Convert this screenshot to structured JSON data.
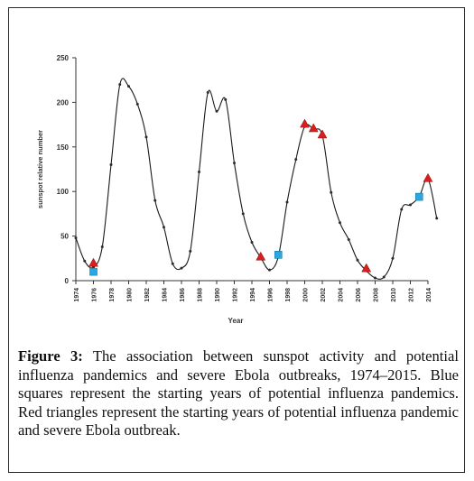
{
  "chart_data": {
    "type": "line",
    "xlabel": "Year",
    "ylabel": "sunspot relative number",
    "xlim": [
      1974,
      2014
    ],
    "ylim": [
      0,
      250
    ],
    "x_ticks": [
      "1974",
      "1976",
      "1978",
      "1980",
      "1982",
      "1984",
      "1986",
      "1988",
      "1990",
      "1992",
      "1994",
      "1996",
      "1998",
      "2000",
      "2002",
      "2004",
      "2006",
      "2008",
      "2010",
      "2012",
      "2014"
    ],
    "y_ticks": [
      "0",
      "50",
      "100",
      "150",
      "200",
      "250"
    ],
    "grid": false,
    "series": [
      {
        "x": [
          1974,
          1975,
          1976,
          1977,
          1978,
          1979,
          1980,
          1981,
          1982,
          1983,
          1984,
          1985,
          1986,
          1987,
          1988,
          1989,
          1990,
          1991,
          1992,
          1993,
          1994,
          1995,
          1996,
          1997,
          1998,
          1999,
          2000,
          2001,
          2002,
          2003,
          2004,
          2005,
          2006,
          2007,
          2008,
          2009,
          2010,
          2011,
          2012,
          2013,
          2014,
          2015
        ],
        "y": [
          48,
          22,
          15,
          38,
          130,
          220,
          218,
          198,
          161,
          90,
          60,
          19,
          14,
          33,
          122,
          211,
          190,
          203,
          132,
          75,
          43,
          26,
          12,
          27,
          88,
          136,
          173,
          170,
          163,
          99,
          65,
          46,
          23,
          11,
          3,
          4,
          25,
          80,
          85,
          94,
          114,
          70
        ]
      }
    ],
    "blue_squares": [
      {
        "x": 1976,
        "y": 10
      },
      {
        "x": 1997,
        "y": 29
      },
      {
        "x": 2013,
        "y": 94
      }
    ],
    "red_triangles": [
      {
        "x": 1976,
        "y": 19
      },
      {
        "x": 1995,
        "y": 26
      },
      {
        "x": 2000,
        "y": 175
      },
      {
        "x": 2001,
        "y": 170
      },
      {
        "x": 2002,
        "y": 163
      },
      {
        "x": 2007,
        "y": 13
      },
      {
        "x": 2014,
        "y": 114
      }
    ],
    "colors": {
      "line": "#1a1a1a",
      "marker": "#2b2b2b",
      "square": "#29a8e0",
      "triangle": "#d81e1e"
    }
  },
  "caption": {
    "label": "Figure 3:",
    "text": " The association between sunspot activity and potential influenza pandemics and severe Ebola outbreaks, 1974–2015. Blue squares represent the starting years of potential influenza pandemics. Red triangles represent the starting years of potential influenza pandemic and severe Ebola outbreak."
  }
}
